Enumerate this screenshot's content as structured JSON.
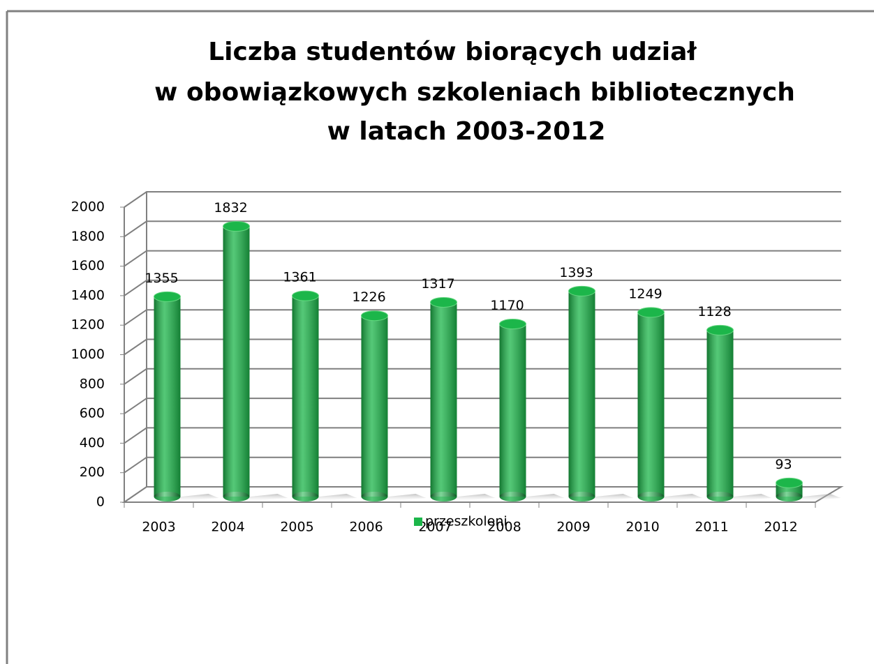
{
  "chart_data": {
    "type": "bar",
    "title": [
      "Liczba studentów biorących udział",
      "w obowiązkowych szkoleniach bibliotecznych",
      "w latach 2003-2012"
    ],
    "categories": [
      "2003",
      "2004",
      "2005",
      "2006",
      "2007",
      "2008",
      "2009",
      "2010",
      "2011",
      "2012"
    ],
    "series": [
      {
        "name": "przeszkoleni",
        "color": "#1cb64a",
        "values": [
          1355,
          1832,
          1361,
          1226,
          1317,
          1170,
          1393,
          1249,
          1128,
          93
        ]
      }
    ],
    "ylim": [
      0,
      2000
    ],
    "yticks": [
      0,
      200,
      400,
      600,
      800,
      1000,
      1200,
      1400,
      1600,
      1800,
      2000
    ],
    "grid": true,
    "legend": "bottom"
  }
}
